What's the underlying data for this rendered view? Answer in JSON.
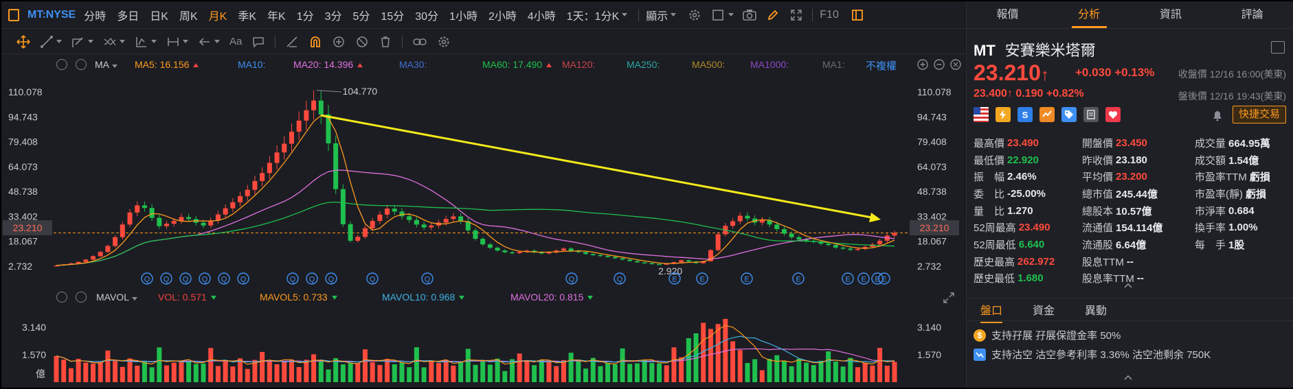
{
  "topbar": {
    "symbol": "MT:NYSE",
    "periods": [
      "分時",
      "多日",
      "日K",
      "周K",
      "月K",
      "季K",
      "年K",
      "1分",
      "3分",
      "5分",
      "15分",
      "30分",
      "1小時",
      "2小時",
      "4小時"
    ],
    "active_period": "月K",
    "range_select": "1天：1分K",
    "display_label": "顯示",
    "f10_label": "F10"
  },
  "toolbar": {
    "aa_label": "Aa"
  },
  "ma_row": {
    "label": "MA",
    "items": [
      {
        "text": "MA5: 16.156",
        "color": "#ff9a1f",
        "trend": "up"
      },
      {
        "text": "MA10:",
        "color": "#3f8ff2",
        "trend": ""
      },
      {
        "text": "MA20: 14.396",
        "color": "#e070e0",
        "trend": "up"
      },
      {
        "text": "MA30:",
        "color": "#3f6fd0",
        "trend": ""
      },
      {
        "text": "MA60: 17.490",
        "color": "#1fc04e",
        "trend": "up"
      },
      {
        "text": "MA120:",
        "color": "#c8434b",
        "trend": ""
      },
      {
        "text": "MA250:",
        "color": "#2aa6a6",
        "trend": ""
      },
      {
        "text": "MA500:",
        "color": "#b08a2a",
        "trend": ""
      },
      {
        "text": "MA1000:",
        "color": "#8a4ac8",
        "trend": ""
      },
      {
        "text": "MA1:",
        "color": "#6a6d75",
        "trend": ""
      }
    ],
    "unadjusted": "不複權"
  },
  "chart_data": {
    "type": "candlestick",
    "y_ticks": [
      "110.078",
      "94.743",
      "79.408",
      "64.073",
      "48.738",
      "33.402",
      "18.067",
      "2.732"
    ],
    "current_price_label": "23.210",
    "current_price": 23.21,
    "high_annotation": "104.770",
    "low_annotation": "2.920",
    "event_markers": [
      "Q",
      "Q",
      "Q",
      "Q",
      "Q",
      "Q",
      "Q",
      "Q",
      "Q",
      "Q",
      "Q",
      "Q",
      "Q",
      "E",
      "E",
      "E",
      "E",
      "E",
      "E",
      "E",
      "E"
    ],
    "close_series": [
      3.2,
      3.8,
      4.5,
      5.4,
      6.8,
      8.9,
      11.5,
      15.2,
      20.6,
      28.4,
      35.8,
      40.2,
      38.6,
      32.5,
      27.4,
      28.9,
      30.6,
      33.0,
      31.8,
      29.5,
      27.8,
      30.9,
      34.6,
      38.4,
      42.1,
      45.9,
      49.8,
      55.2,
      60.1,
      66.4,
      72.8,
      78.2,
      85.6,
      92.4,
      98.8,
      104.77,
      96.2,
      78.4,
      50.2,
      28.6,
      18.4,
      20.8,
      26.1,
      30.6,
      34.5,
      38.2,
      36.4,
      33.5,
      31.2,
      28.4,
      26.6,
      27.8,
      29.6,
      31.8,
      33.4,
      30.5,
      24.8,
      19.6,
      16.2,
      14.1,
      12.4,
      11.3,
      10.8,
      11.6,
      12.3,
      11.4,
      10.6,
      11.2,
      12.4,
      13.6,
      12.2,
      11.4,
      10.3,
      9.6,
      9.1,
      8.4,
      7.6,
      6.8,
      5.9,
      5.1,
      4.6,
      4.1,
      3.8,
      4.3,
      5.2,
      6.4,
      5.6,
      4.6,
      5.8,
      12.6,
      22.4,
      27.6,
      30.4,
      33.8,
      32.1,
      29.6,
      31.2,
      28.4,
      25.6,
      22.8,
      20.6,
      19.2,
      18.4,
      17.8,
      16.6,
      15.8,
      14.2,
      13.6,
      12.8,
      13.4,
      14.6,
      16.2,
      18.4,
      21.6,
      23.21
    ],
    "volume": {
      "label": "MAVOL",
      "vol": "VOL: 0.571",
      "mavol5": "MAVOL5: 0.733",
      "mavol10": "MAVOL10: 0.968",
      "mavol20": "MAVOL20: 0.815",
      "y_ticks": [
        "3.140",
        "1.570"
      ],
      "unit": "億"
    }
  },
  "panel": {
    "tabs": [
      "報價",
      "分析",
      "資訊",
      "評論"
    ],
    "code": "MT",
    "name": "安賽樂米塔爾",
    "price": "23.210",
    "change": "+0.030  +0.13%",
    "market_time": "收盤價 12/16 16:00(美東)",
    "after_hours": "23.400↑  0.190  +0.82%",
    "after_time": "盤後價 12/16 19:43(美東)",
    "fast_trade": "快捷交易",
    "stats": [
      [
        {
          "k": "最高價",
          "v": "23.490",
          "c": "red"
        },
        {
          "k": "開盤價",
          "v": "23.450",
          "c": "red"
        },
        {
          "k": "成交量",
          "v": "664.95萬",
          "c": "white"
        }
      ],
      [
        {
          "k": "最低價",
          "v": "22.920",
          "c": "green"
        },
        {
          "k": "昨收價",
          "v": "23.180",
          "c": "white"
        },
        {
          "k": "成交額",
          "v": "1.54億",
          "c": "white"
        }
      ],
      [
        {
          "k": "振　幅",
          "v": "2.46%",
          "c": "white"
        },
        {
          "k": "平均價",
          "v": "23.200",
          "c": "red"
        },
        {
          "k": "市盈率TTM",
          "v": "虧損",
          "c": "white"
        }
      ],
      [
        {
          "k": "委　比",
          "v": "-25.00%",
          "c": "white"
        },
        {
          "k": "總市值",
          "v": "245.44億",
          "c": "white"
        },
        {
          "k": "市盈率(靜)",
          "v": "虧損",
          "c": "white"
        }
      ],
      [
        {
          "k": "量　比",
          "v": "1.270",
          "c": "white"
        },
        {
          "k": "總股本",
          "v": "10.57億",
          "c": "white"
        },
        {
          "k": "市淨率",
          "v": "0.684",
          "c": "white"
        }
      ],
      [
        {
          "k": "52周最高",
          "v": "23.490",
          "c": "red"
        },
        {
          "k": "流通值",
          "v": "154.114億",
          "c": "white"
        },
        {
          "k": "換手率",
          "v": "1.00%",
          "c": "white"
        }
      ],
      [
        {
          "k": "52周最低",
          "v": "6.640",
          "c": "green"
        },
        {
          "k": "流通股",
          "v": "6.64億",
          "c": "white"
        },
        {
          "k": "每　手",
          "v": "1股",
          "c": "white"
        }
      ],
      [
        {
          "k": "歷史最高",
          "v": "262.972",
          "c": "red"
        },
        {
          "k": "股息TTM",
          "v": "--",
          "c": "white"
        },
        {
          "k": "",
          "v": "",
          "c": "white"
        }
      ],
      [
        {
          "k": "歷史最低",
          "v": "1.680",
          "c": "green"
        },
        {
          "k": "股息率TTM",
          "v": "--",
          "c": "white"
        },
        {
          "k": "",
          "v": "",
          "c": "white"
        }
      ]
    ],
    "subtabs": [
      "盤口",
      "資金",
      "異動"
    ],
    "info1": "支持孖展  孖展保證金率 50%",
    "info2": "支持沽空  沽空參考利率 3.36%  沽空池剩余 750K"
  }
}
